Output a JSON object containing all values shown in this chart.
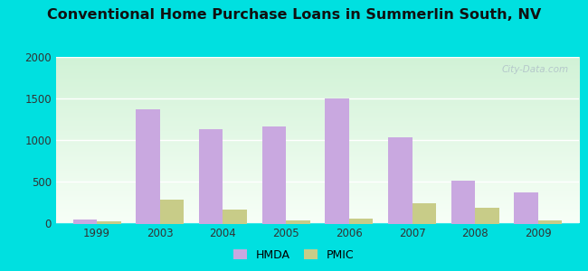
{
  "title": "Conventional Home Purchase Loans in Summerlin South, NV",
  "years": [
    1999,
    2003,
    2004,
    2005,
    2006,
    2007,
    2008,
    2009
  ],
  "hmda": [
    50,
    1370,
    1130,
    1160,
    1500,
    1040,
    510,
    370
  ],
  "pmic": [
    25,
    290,
    165,
    40,
    60,
    245,
    195,
    35
  ],
  "hmda_color": "#c9a8e0",
  "pmic_color": "#c8cc88",
  "ylim": [
    0,
    2000
  ],
  "yticks": [
    0,
    500,
    1000,
    1500,
    2000
  ],
  "bg_outer": "#00e0e0",
  "grid_color": "#ffffff",
  "watermark": "City-Data.com",
  "bar_width": 0.38,
  "title_fontsize": 11.5
}
